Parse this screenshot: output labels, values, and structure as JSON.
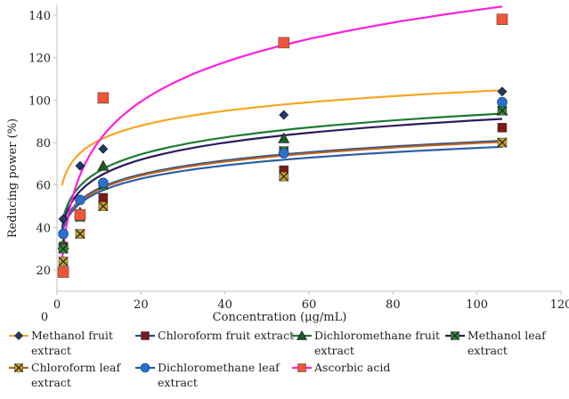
{
  "chart_data": {
    "type": "scatter",
    "ylabel": "Reducing power (%)",
    "xlabel": "Concentration (μg/mL)",
    "xlim": [
      0,
      120
    ],
    "ylim": [
      10,
      145
    ],
    "x_ticks": [
      "0",
      "20",
      "40",
      "60",
      "80",
      "100",
      "120"
    ],
    "y_ticks": [
      "20",
      "40",
      "60",
      "80",
      "100",
      "120",
      "140"
    ],
    "trendline": "logarithmic",
    "legend_position": "bottom",
    "grid": false,
    "series": [
      {
        "name": "Methanol fruit extract",
        "name_lines": [
          "Methanol fruit",
          "extract"
        ],
        "color": "#F5A623",
        "marker_color": "#1F3864",
        "marker": "diamond",
        "x": [
          1.5,
          5.5,
          11,
          54,
          106
        ],
        "y": [
          44,
          69,
          77,
          93,
          104
        ],
        "fit": [
          58,
          10
        ]
      },
      {
        "name": "Chloroform fruit extract",
        "name_lines": [
          "Chloroform fruit extract"
        ],
        "color": "#1F4E9C",
        "marker_color": "#7B1A1A",
        "marker": "square",
        "x": [
          1.5,
          5.5,
          11,
          54,
          106
        ],
        "y": [
          31,
          46,
          54,
          67,
          87
        ],
        "fit": [
          36.5,
          9.5
        ]
      },
      {
        "name": "Dichloromethane fruit extract",
        "name_lines": [
          "Dichloromethane fruit",
          "extract"
        ],
        "color": "#1E7B34",
        "marker_color": "#1E5A2A",
        "marker": "triangle",
        "x": [
          1.5,
          5.5,
          11,
          54,
          106
        ],
        "y": [
          32,
          47,
          69,
          82,
          95
        ],
        "fit": [
          40,
          11.5
        ]
      },
      {
        "name": "Methanol leaf extract",
        "name_lines": [
          "Methanol leaf",
          "extract"
        ],
        "color": "#2E1A5E",
        "marker_color": "#2E8B3A",
        "marker": "square-x",
        "x": [
          1.5,
          5.5,
          11,
          54,
          106
        ],
        "y": [
          30,
          45,
          60,
          76,
          95
        ],
        "fit": [
          37.5,
          11.5
        ]
      },
      {
        "name": "Chloroform leaf extract",
        "name_lines": [
          "Chloroform leaf",
          "extract"
        ],
        "color": "#B5651D",
        "marker_color": "#C9A227",
        "marker": "square-x",
        "x": [
          1.5,
          5.5,
          11,
          54,
          106
        ],
        "y": [
          24,
          37,
          50,
          64,
          80
        ],
        "fit": [
          36,
          9.5
        ]
      },
      {
        "name": "Dichloromethane leaf extract",
        "name_lines": [
          "Dichloromethane leaf",
          "extract"
        ],
        "color": "#2C5FA8",
        "marker_color": "#2C6FC8",
        "marker": "circle",
        "x": [
          1.5,
          5.5,
          11,
          54,
          106
        ],
        "y": [
          37,
          53,
          61,
          75,
          99
        ],
        "fit": [
          36,
          9
        ]
      },
      {
        "name": "Ascorbic acid",
        "name_lines": [
          "Ascorbic acid"
        ],
        "color": "#FF1FDC",
        "marker_color": "#F0553A",
        "marker": "square",
        "x": [
          1.5,
          5.5,
          11,
          54,
          106
        ],
        "y": [
          19,
          46,
          101,
          127,
          138
        ],
        "fit": [
          19,
          26.8
        ]
      }
    ]
  },
  "labels": {
    "ylabel": "Reducing power (%)",
    "xlabel": "Concentration (μg/mL)",
    "corner_zero": "0"
  }
}
